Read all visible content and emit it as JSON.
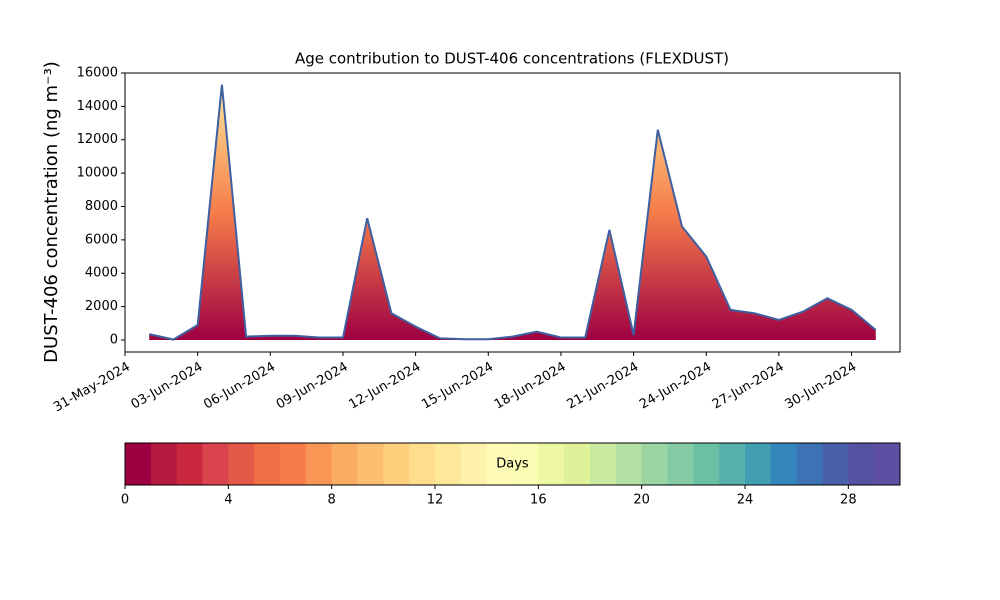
{
  "chart_data": {
    "type": "area",
    "title": "Age contribution to DUST-406 concentrations (FLEXDUST)",
    "y_label": "DUST-406 concentration (ng m⁻³)",
    "x": [
      "2024-06-01",
      "2024-06-02",
      "2024-06-03",
      "2024-06-04",
      "2024-06-05",
      "2024-06-06",
      "2024-06-07",
      "2024-06-08",
      "2024-06-09",
      "2024-06-10",
      "2024-06-11",
      "2024-06-12",
      "2024-06-13",
      "2024-06-14",
      "2024-06-15",
      "2024-06-16",
      "2024-06-17",
      "2024-06-18",
      "2024-06-19",
      "2024-06-20",
      "2024-06-21",
      "2024-06-22",
      "2024-06-23",
      "2024-06-24",
      "2024-06-25",
      "2024-06-26",
      "2024-06-27",
      "2024-06-28",
      "2024-06-29",
      "2024-06-30",
      "2024-07-01"
    ],
    "values": [
      350,
      30,
      900,
      15300,
      200,
      250,
      250,
      150,
      150,
      7300,
      1600,
      800,
      100,
      50,
      50,
      200,
      500,
      150,
      150,
      6600,
      300,
      12600,
      6800,
      5000,
      1800,
      1600,
      1200,
      1700,
      2500,
      1800,
      600
    ],
    "line_color": "#3f5fa0",
    "fill_colors": [
      "#9e0142",
      "#f67d4a",
      "#fee899"
    ],
    "xlim": [
      "2024-05-31",
      "2024-07-02"
    ],
    "xticks": [
      {
        "value": "2024-05-31",
        "label": "31-May-2024"
      },
      {
        "value": "2024-06-03",
        "label": "03-Jun-2024"
      },
      {
        "value": "2024-06-06",
        "label": "06-Jun-2024"
      },
      {
        "value": "2024-06-09",
        "label": "09-Jun-2024"
      },
      {
        "value": "2024-06-12",
        "label": "12-Jun-2024"
      },
      {
        "value": "2024-06-15",
        "label": "15-Jun-2024"
      },
      {
        "value": "2024-06-18",
        "label": "18-Jun-2024"
      },
      {
        "value": "2024-06-21",
        "label": "21-Jun-2024"
      },
      {
        "value": "2024-06-24",
        "label": "24-Jun-2024"
      },
      {
        "value": "2024-06-27",
        "label": "27-Jun-2024"
      },
      {
        "value": "2024-06-30",
        "label": "30-Jun-2024"
      }
    ],
    "ylim": [
      -720,
      16000
    ],
    "yticks": [
      0,
      2000,
      4000,
      6000,
      8000,
      10000,
      12000,
      14000,
      16000
    ],
    "colorbar": {
      "label": "Days",
      "lim": [
        0,
        30
      ],
      "ticks": [
        0,
        4,
        8,
        12,
        16,
        20,
        24,
        28
      ],
      "colors": [
        "#9e0142",
        "#b5193f",
        "#c9283f",
        "#d9444e",
        "#e55a47",
        "#f06f45",
        "#f67d4a",
        "#f99656",
        "#fcad61",
        "#fdbf6f",
        "#fed07e",
        "#fedd8c",
        "#fee899",
        "#fff2ab",
        "#fffcba",
        "#f9fcb2",
        "#eef8a4",
        "#dff299",
        "#c9e99e",
        "#b3e0a2",
        "#9bd5a4",
        "#83cba4",
        "#6bbfa5",
        "#56b0ab",
        "#439eb3",
        "#3487bc",
        "#3b73b4",
        "#4961ab",
        "#5751a1",
        "#5e4fa2"
      ]
    }
  }
}
